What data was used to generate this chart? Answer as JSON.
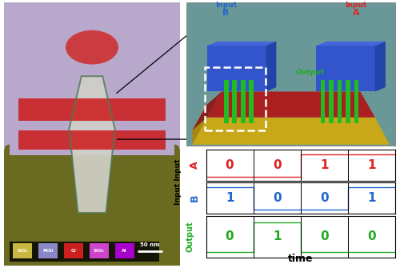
{
  "figure_bg": "#ffffff",
  "left_panel_bg": "#b8a8cc",
  "left_panel_bottom_bg": "#6a6a20",
  "wire_color": "#d0d0c8",
  "wire_green_outline": "#507850",
  "gate_color": "#cc2020",
  "top_blob_color": "#cc3333",
  "legend_bg": "#000000",
  "legend_colors": [
    "#c8b840",
    "#8888c8",
    "#cc2020",
    "#cc44cc",
    "#aa00cc"
  ],
  "legend_labels": [
    "SiOₓ",
    "PtSi",
    "Cr",
    "SiO₂",
    "Al"
  ],
  "scalebar_text": "50 nm",
  "tr_bg": "#6a9898",
  "yellow_base": "#c8a818",
  "red_plate": "#aa2020",
  "blue_block": "#3355cc",
  "green_pillars": "#22bb22",
  "input_A_color": "#dd2222",
  "input_B_color": "#2266cc",
  "output_3d_color": "#22aa22",
  "signal_plots": {
    "A_color": "#dd2222",
    "B_color": "#2266cc",
    "output_color": "#22aa22",
    "time_label": "time",
    "A_values": [
      0,
      0,
      1,
      1
    ],
    "B_values": [
      1,
      0,
      0,
      1
    ],
    "out_values": [
      0,
      1,
      0,
      0
    ],
    "A_numbers": [
      "0",
      "0",
      "1",
      "1"
    ],
    "B_numbers": [
      "1",
      "0",
      "0",
      "1"
    ],
    "out_numbers": [
      "0",
      "1",
      "0",
      "0"
    ],
    "signal_low": 0.08,
    "signal_high": 0.88,
    "number_fontsize": 11,
    "label_fontsize": 8
  }
}
